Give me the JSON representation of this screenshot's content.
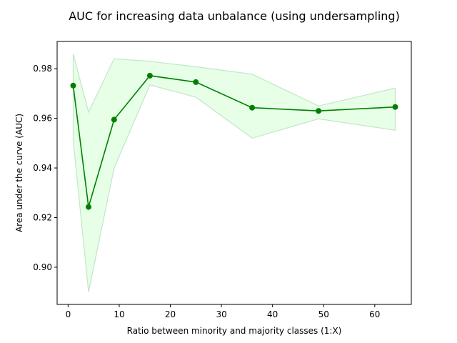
{
  "chart_data": {
    "type": "line",
    "title": "AUC for increasing data unbalance (using undersampling)",
    "xlabel": "Ratio between minority and majority classes (1:X)",
    "ylabel": "Area under the curve (AUC)",
    "xlim": [
      -2.15,
      67.15
    ],
    "ylim": [
      0.885,
      0.991
    ],
    "xticks": [
      0,
      10,
      20,
      30,
      40,
      50,
      60
    ],
    "yticks": [
      0.9,
      0.92,
      0.94,
      0.96,
      0.98
    ],
    "xtick_labels": [
      "0",
      "10",
      "20",
      "30",
      "40",
      "50",
      "60"
    ],
    "ytick_labels": [
      "0.90",
      "0.92",
      "0.94",
      "0.96",
      "0.98"
    ],
    "grid": false,
    "series": [
      {
        "x": [
          1,
          4,
          9,
          16,
          25,
          36,
          49,
          64
        ],
        "y": [
          0.9732,
          0.9243,
          0.9595,
          0.9772,
          0.9746,
          0.9643,
          0.963,
          0.9646
        ],
        "upper": [
          0.986,
          0.9625,
          0.984,
          0.983,
          0.9808,
          0.9778,
          0.965,
          0.9722
        ],
        "lower": [
          0.9512,
          0.89,
          0.94,
          0.9735,
          0.9685,
          0.952,
          0.9598,
          0.9552
        ],
        "color": "#008000",
        "band_color": "#e6ffe6",
        "band_edge_color": "#c2e6c8"
      }
    ]
  }
}
